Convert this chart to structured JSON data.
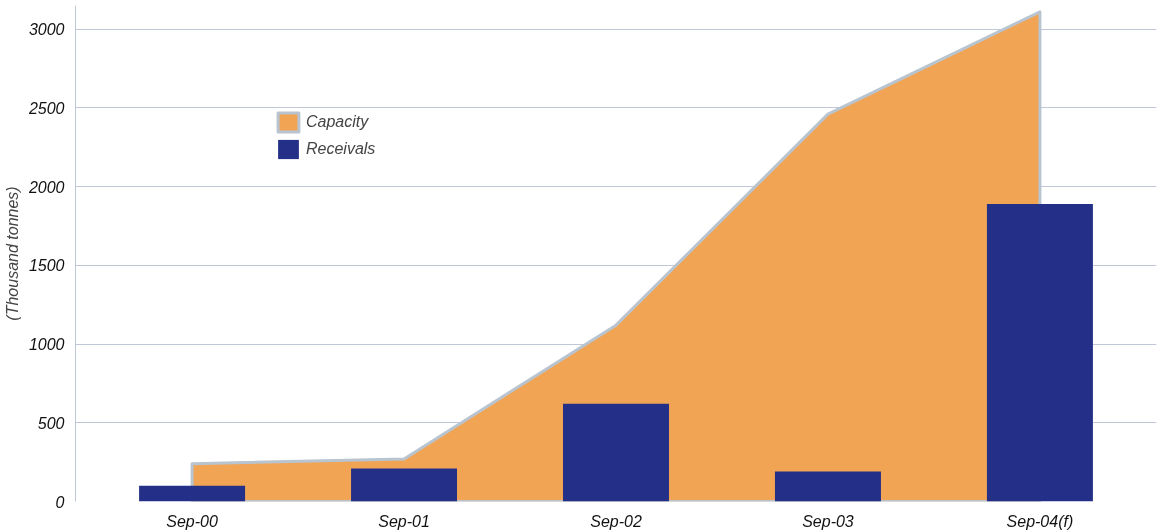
{
  "chart_data": {
    "type": "bar",
    "ylabel": "(Thousand tonnes)",
    "categories": [
      "Sep-00",
      "Sep-01",
      "Sep-02",
      "Sep-03",
      "Sep-04(f)"
    ],
    "series": [
      {
        "name": "Capacity",
        "type": "area",
        "color": "#f0a454",
        "values": [
          240,
          270,
          1120,
          2460,
          3110
        ]
      },
      {
        "name": "Receivals",
        "color": "#243087",
        "values": [
          100,
          210,
          620,
          190,
          1890
        ]
      }
    ],
    "ylim": [
      0,
      3150
    ],
    "yticks": [
      0,
      500,
      1000,
      1500,
      2000,
      2500,
      3000
    ],
    "grid": "y",
    "legend": "top left"
  }
}
